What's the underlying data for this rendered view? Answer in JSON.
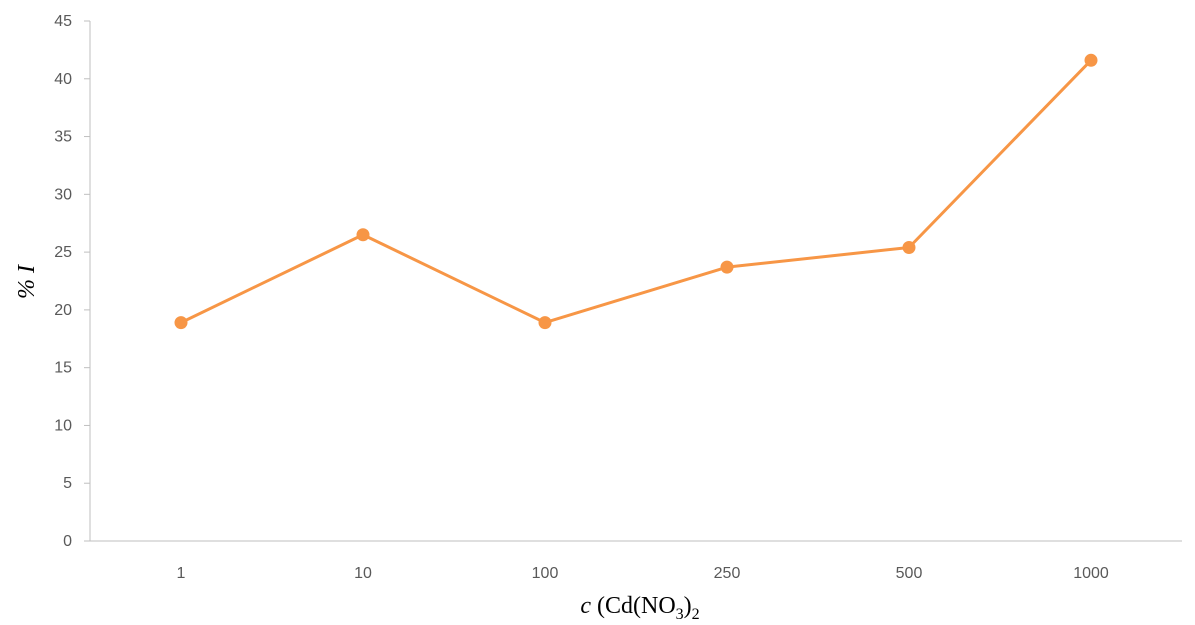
{
  "chart_data": {
    "type": "line",
    "categories": [
      "1",
      "10",
      "100",
      "250",
      "500",
      "1000"
    ],
    "series": [
      {
        "values": [
          18.9,
          26.5,
          18.9,
          23.7,
          25.4,
          41.6
        ],
        "color": "#F79646"
      }
    ],
    "xlabel": {
      "prefix": "c",
      "main": " (Cd(NO",
      "sub1": "3",
      "close": ")",
      "sub2": "2"
    },
    "ylabel": "% I",
    "ylim": [
      0,
      45
    ],
    "yticks": [
      0,
      5,
      10,
      15,
      20,
      25,
      30,
      35,
      40,
      45
    ],
    "grid": false,
    "colors": {
      "axis": "#BFBFBF",
      "tick_text": "#595959"
    }
  }
}
